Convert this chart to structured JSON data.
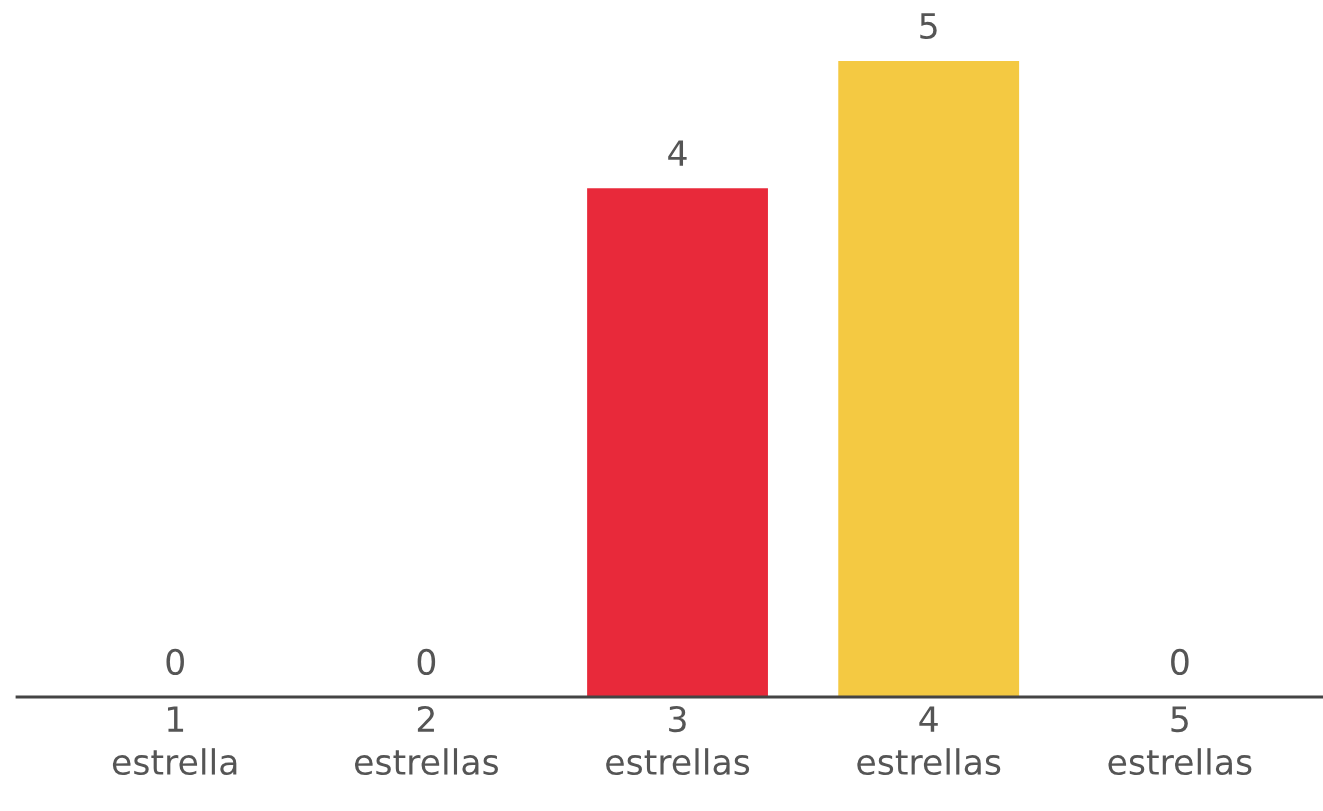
{
  "chart_data": {
    "type": "bar",
    "categories": [
      "1\nestrella",
      "2\nestrellas",
      "3\nestrellas",
      "4\nestrellas",
      "5\nestrellas"
    ],
    "values": [
      0,
      0,
      4,
      5,
      0
    ],
    "colors": [
      null,
      null,
      "#e8293a",
      "#f4c942",
      null
    ],
    "data_labels": true
  }
}
